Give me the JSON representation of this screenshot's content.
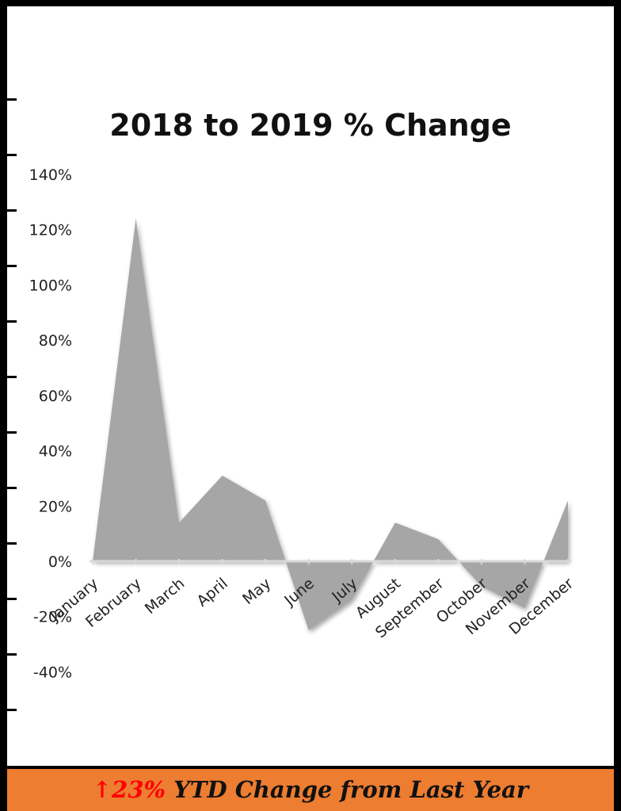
{
  "chart_data": {
    "type": "area",
    "title": "2018 to 2019 % Change",
    "categories": [
      "January",
      "February",
      "March",
      "April",
      "May",
      "June",
      "July",
      "August",
      "September",
      "October",
      "November",
      "December"
    ],
    "values": [
      0,
      124,
      14,
      31,
      22,
      -25,
      -14,
      14,
      8,
      -9,
      -17,
      22
    ],
    "y_ticks": [
      "140%",
      "120%",
      "100%",
      "80%",
      "60%",
      "40%",
      "20%",
      "0%",
      "-20%",
      "-40%"
    ],
    "ylim": [
      -40,
      140
    ],
    "xlabel": "",
    "ylabel": "",
    "grid": false,
    "legend": "none",
    "fill_color": "#a6a6a6"
  },
  "footer": {
    "arrow": "↑",
    "percent": "23%",
    "text": " YTD Change from Last Year",
    "background": "#ed7d31",
    "accent": "#ff0000"
  }
}
